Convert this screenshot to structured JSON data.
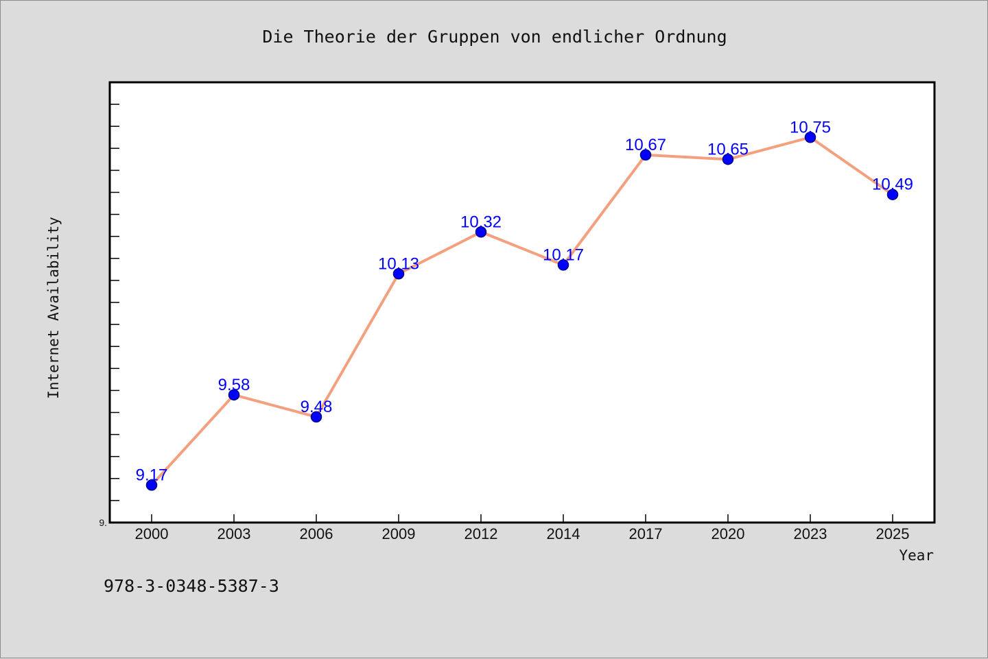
{
  "chart_data": {
    "type": "line",
    "title": "Die Theorie der Gruppen von endlicher Ordnung",
    "xlabel": "Year",
    "ylabel": "Internet Availability",
    "categories": [
      "2000",
      "2003",
      "2006",
      "2009",
      "2012",
      "2014",
      "2017",
      "2020",
      "2023",
      "2025"
    ],
    "series": [
      {
        "values": [
          9.17,
          9.58,
          9.48,
          10.13,
          10.32,
          10.17,
          10.67,
          10.65,
          10.75,
          10.49
        ]
      }
    ],
    "data_labels": [
      "9.17",
      "9.58",
      "9.48",
      "10.13",
      "10.32",
      "10.17",
      "10.67",
      "10.65",
      "10.75",
      "10.49"
    ],
    "ylim": [
      9.0,
      11.0
    ],
    "y_minor_tick_step": 0.1,
    "y_tick_labels": [
      {
        "value": 9.0,
        "label": "9."
      }
    ],
    "grid": false,
    "legend": "none",
    "colors": {
      "line": "#f4a07e",
      "marker": "#0000ff",
      "marker_edge": "#00008b",
      "data_label": "#0000ff",
      "plot_background": "#ffffff",
      "figure_background": "#dcdcdc"
    }
  },
  "footer": {
    "isbn": "978-3-0348-5387-3"
  }
}
